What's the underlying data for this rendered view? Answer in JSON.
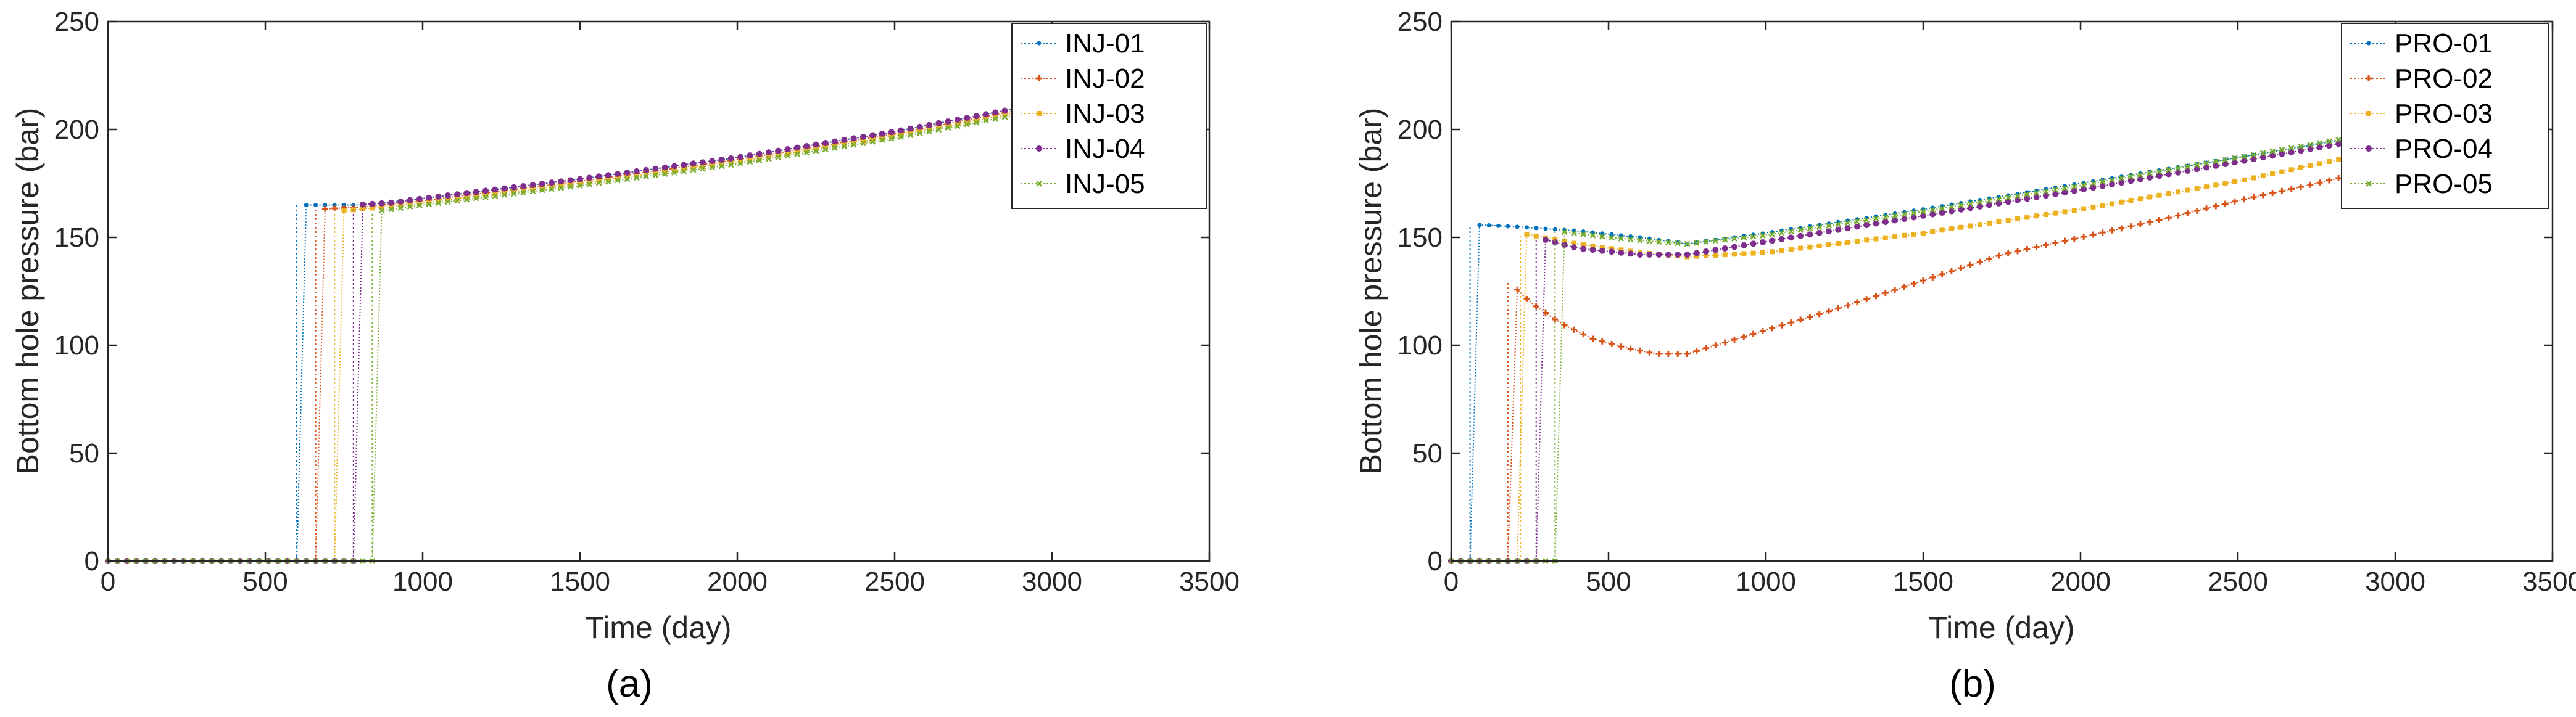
{
  "figure": {
    "palette": [
      "#0072BD",
      "#D95319",
      "#EDB120",
      "#7E2F8E",
      "#77AC30"
    ]
  },
  "chart_data": [
    {
      "type": "line",
      "caption": "(a)",
      "xlabel": "Time (day)",
      "ylabel": "Bottom hole pressure (bar)",
      "xlim": [
        0,
        3500
      ],
      "ylim": [
        0,
        250
      ],
      "xticks": [
        0,
        500,
        1000,
        1500,
        2000,
        2500,
        3000,
        3500
      ],
      "yticks": [
        0,
        50,
        100,
        150,
        200,
        250
      ],
      "grid": false,
      "legend_position": "top-right",
      "series": [
        {
          "name": "INJ-01",
          "color": "#0072BD",
          "start_day": 600,
          "end_day": 3040,
          "values_day": [
            0,
            300,
            600,
            601,
            800,
            1000,
            1500,
            2000,
            2500,
            3040
          ],
          "values_bar": [
            0,
            0,
            0,
            165,
            165,
            168,
            177,
            187,
            199,
            214
          ]
        },
        {
          "name": "INJ-02",
          "color": "#D95319",
          "start_day": 660,
          "end_day": 3040,
          "values_day": [
            0,
            300,
            660,
            661,
            800,
            1000,
            1500,
            2000,
            2500,
            3040
          ],
          "values_bar": [
            0,
            0,
            0,
            163,
            164,
            167,
            176,
            186,
            198,
            213
          ]
        },
        {
          "name": "INJ-03",
          "color": "#EDB120",
          "start_day": 720,
          "end_day": 3040,
          "values_day": [
            0,
            300,
            720,
            721,
            800,
            1000,
            1500,
            2000,
            2500,
            3040
          ],
          "values_bar": [
            0,
            0,
            0,
            162,
            163,
            166,
            175,
            185,
            197,
            212
          ]
        },
        {
          "name": "INJ-04",
          "color": "#7E2F8E",
          "start_day": 780,
          "end_day": 3040,
          "values_day": [
            0,
            300,
            780,
            781,
            900,
            1000,
            1500,
            2000,
            2500,
            3040
          ],
          "values_bar": [
            0,
            0,
            0,
            165,
            166,
            168,
            177,
            187,
            199,
            214
          ]
        },
        {
          "name": "INJ-05",
          "color": "#77AC30",
          "start_day": 840,
          "end_day": 3040,
          "values_day": [
            0,
            300,
            840,
            841,
            900,
            1000,
            1500,
            2000,
            2500,
            3040
          ],
          "values_bar": [
            0,
            0,
            0,
            162,
            163,
            165,
            174,
            184,
            196,
            211
          ]
        }
      ]
    },
    {
      "type": "line",
      "caption": "(b)",
      "xlabel": "Time (day)",
      "ylabel": "Bottom hole pressure (bar)",
      "xlim": [
        0,
        3500
      ],
      "ylim": [
        0,
        250
      ],
      "xticks": [
        0,
        500,
        1000,
        1500,
        2000,
        2500,
        3000,
        3500
      ],
      "yticks": [
        0,
        50,
        100,
        150,
        200,
        250
      ],
      "grid": false,
      "legend_position": "top-right",
      "series": [
        {
          "name": "PRO-01",
          "color": "#0072BD",
          "start_day": 60,
          "end_day": 3040,
          "values_day": [
            0,
            60,
            61,
            200,
            400,
            600,
            750,
            1000,
            1500,
            2000,
            2500,
            3040
          ],
          "values_bar": [
            0,
            0,
            156,
            155,
            153,
            150,
            147,
            152,
            163,
            175,
            187,
            200
          ]
        },
        {
          "name": "PRO-02",
          "color": "#D95319",
          "start_day": 180,
          "end_day": 3040,
          "values_day": [
            0,
            180,
            181,
            250,
            350,
            450,
            550,
            650,
            750,
            1000,
            1250,
            1500,
            1750,
            2000,
            2250,
            2500,
            2750,
            3040
          ],
          "values_bar": [
            0,
            0,
            130,
            120,
            110,
            103,
            99,
            96,
            96,
            107,
            118,
            130,
            142,
            150,
            158,
            167,
            175,
            185
          ]
        },
        {
          "name": "PRO-03",
          "color": "#EDB120",
          "start_day": 220,
          "end_day": 3040,
          "values_day": [
            0,
            220,
            221,
            400,
            600,
            750,
            1000,
            1500,
            2000,
            2500,
            3040
          ],
          "values_bar": [
            0,
            0,
            152,
            147,
            143,
            141,
            143,
            152,
            163,
            176,
            193
          ]
        },
        {
          "name": "PRO-04",
          "color": "#7E2F8E",
          "start_day": 270,
          "end_day": 3040,
          "values_day": [
            0,
            270,
            271,
            400,
            600,
            750,
            1000,
            1500,
            2000,
            2500,
            3040
          ],
          "values_bar": [
            0,
            0,
            150,
            145,
            142,
            142,
            148,
            160,
            172,
            185,
            199
          ]
        },
        {
          "name": "PRO-05",
          "color": "#77AC30",
          "start_day": 330,
          "end_day": 3040,
          "values_day": [
            0,
            330,
            331,
            500,
            650,
            750,
            1000,
            1500,
            2000,
            2500,
            3040
          ],
          "values_bar": [
            0,
            0,
            153,
            150,
            148,
            147,
            151,
            162,
            174,
            187,
            201
          ]
        }
      ]
    }
  ]
}
